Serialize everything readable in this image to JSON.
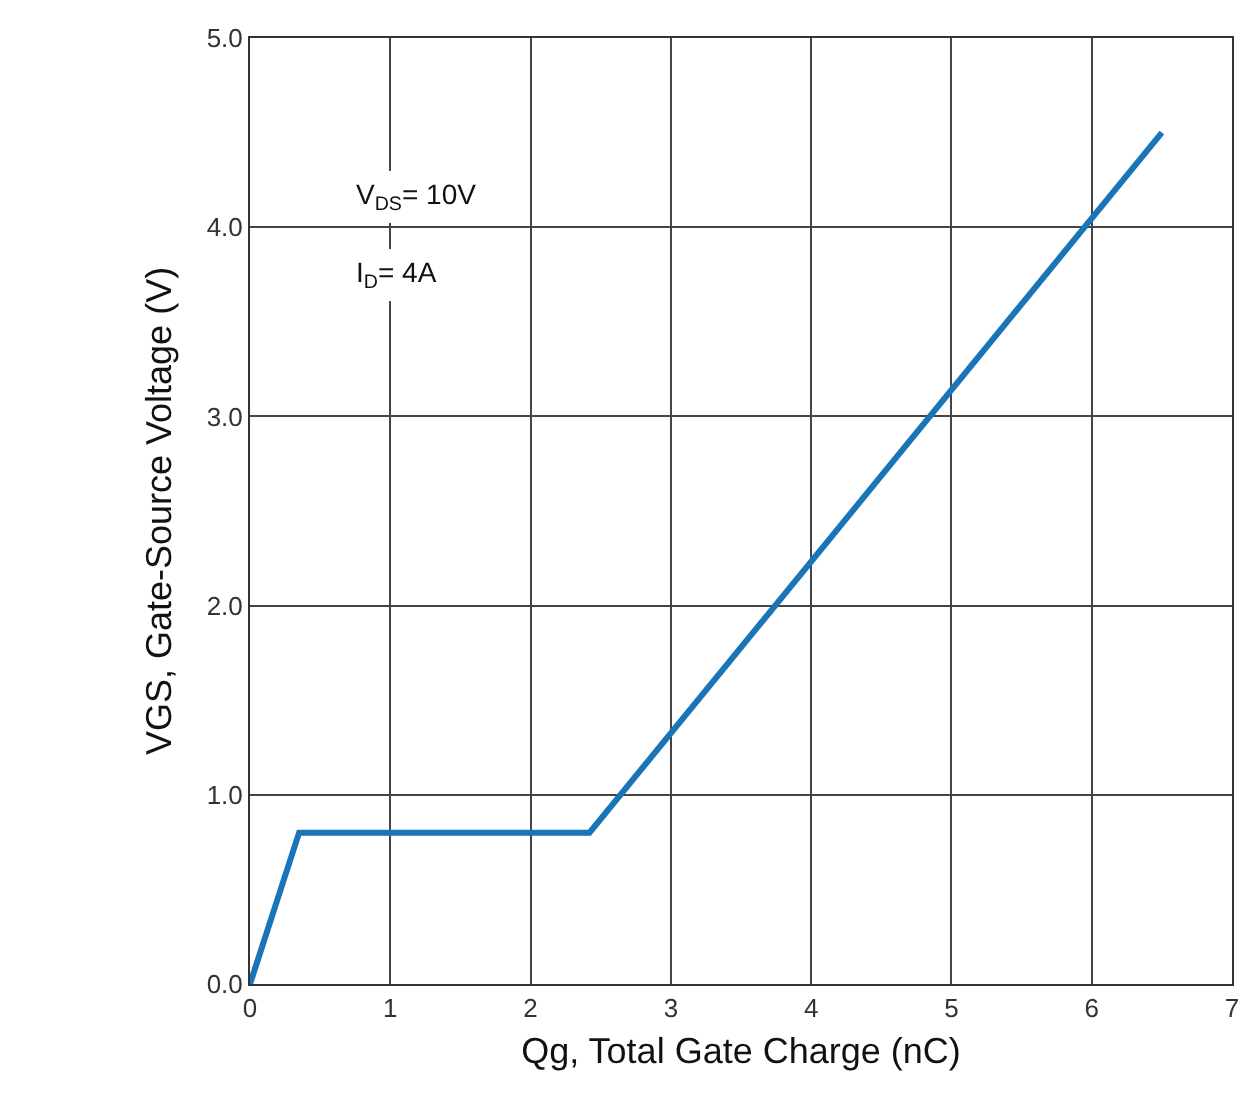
{
  "chart_data": {
    "type": "line",
    "xlabel": "Qg, Total Gate Charge (nC)",
    "ylabel": "VGS, Gate-Source Voltage (V)",
    "x": [
      0,
      0.35,
      2.42,
      6.5
    ],
    "series": [
      {
        "color": "#1a75b8",
        "values": [
          0,
          0.8,
          0.8,
          4.5
        ]
      }
    ],
    "xlim": [
      0,
      7
    ],
    "xticks": [
      0,
      1,
      2,
      3,
      4,
      5,
      6,
      7
    ],
    "ylim": [
      0,
      5
    ],
    "yticks": [
      {
        "value": 0,
        "label": "0.0"
      },
      {
        "value": 1,
        "label": "1.0"
      },
      {
        "value": 2,
        "label": "2.0"
      },
      {
        "value": 3,
        "label": "3.0"
      },
      {
        "value": 4,
        "label": "4.0"
      },
      {
        "value": 5,
        "label": "5.0"
      }
    ],
    "annotations": [
      "V$_{DS}$= 10V",
      "I$_{D}$= 4A"
    ],
    "grid": true,
    "marker": "none",
    "line_style": "solid"
  }
}
